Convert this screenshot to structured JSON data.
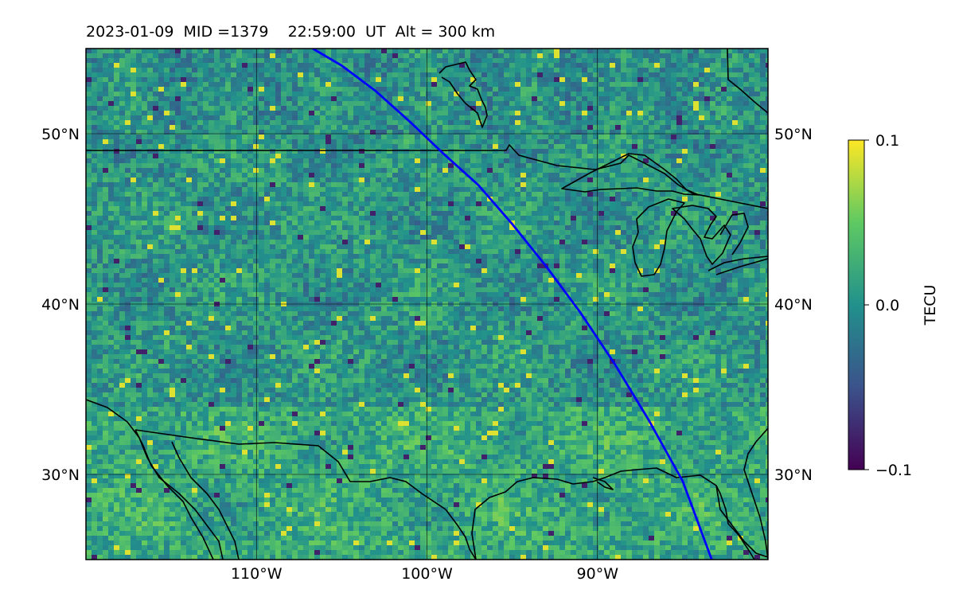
{
  "title": "2023-01-09  MID =1379    22:59:00  UT  Alt = 300 km",
  "map": {
    "lon_range": [
      -120,
      -80
    ],
    "lat_range": [
      25,
      55
    ],
    "lat_ticks": [
      {
        "value": 50,
        "label": "50°N"
      },
      {
        "value": 40,
        "label": "40°N"
      },
      {
        "value": 30,
        "label": "30°N"
      }
    ],
    "lon_ticks": [
      {
        "value": -110,
        "label": "110°W"
      },
      {
        "value": -100,
        "label": "100°W"
      },
      {
        "value": -90,
        "label": "90°W"
      }
    ],
    "colormap": [
      "#440154",
      "#3b528b",
      "#21918c",
      "#5ec962",
      "#fde725"
    ],
    "coast_color": "#000000",
    "track_color": "#0000ff",
    "satellite_track": [
      [
        -106.7,
        55
      ],
      [
        -105,
        54
      ],
      [
        -103,
        52.5
      ],
      [
        -101,
        50.7
      ],
      [
        -99,
        48.8
      ],
      [
        -97,
        47
      ],
      [
        -95,
        44.7
      ],
      [
        -93,
        42.2
      ],
      [
        -91,
        39.5
      ],
      [
        -89,
        36.5
      ],
      [
        -87,
        33.2
      ],
      [
        -85,
        29.6
      ],
      [
        -83.3,
        25
      ]
    ]
  },
  "colorbar": {
    "label": "TECU",
    "min": -0.1,
    "max": 0.1,
    "ticks": [
      {
        "value": 0.1,
        "label": "0.1"
      },
      {
        "value": 0.0,
        "label": "0.0"
      },
      {
        "value": -0.1,
        "label": "−0.1"
      }
    ]
  }
}
